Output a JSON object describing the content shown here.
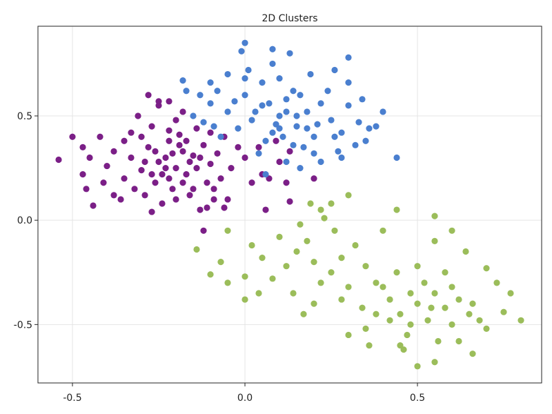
{
  "chart_data": {
    "type": "scatter",
    "title": "2D Clusters",
    "xlabel": "",
    "ylabel": "",
    "xlim": [
      -0.6,
      0.86
    ],
    "ylim": [
      -0.78,
      0.93
    ],
    "x_ticks": [
      -0.5,
      0.0,
      0.5
    ],
    "x_tick_labels": [
      "-0.5",
      "0.0",
      "0.5"
    ],
    "y_ticks": [
      -0.5,
      0.0,
      0.5
    ],
    "y_tick_labels": [
      "-0.5",
      "0.0",
      "0.5"
    ],
    "grid": true,
    "legend": "none",
    "series": [
      {
        "color": "#7b1f87",
        "points": [
          [
            -0.23,
            0.3
          ],
          [
            -0.18,
            0.33
          ],
          [
            -0.25,
            0.28
          ],
          [
            -0.2,
            0.25
          ],
          [
            -0.15,
            0.31
          ],
          [
            -0.28,
            0.35
          ],
          [
            -0.22,
            0.38
          ],
          [
            -0.17,
            0.22
          ],
          [
            -0.3,
            0.24
          ],
          [
            -0.12,
            0.36
          ],
          [
            -0.26,
            0.18
          ],
          [
            -0.19,
            0.41
          ],
          [
            -0.33,
            0.3
          ],
          [
            -0.1,
            0.27
          ],
          [
            -0.21,
            0.15
          ],
          [
            -0.14,
            0.44
          ],
          [
            -0.35,
            0.2
          ],
          [
            -0.08,
            0.32
          ],
          [
            -0.27,
            0.45
          ],
          [
            -0.16,
            0.12
          ],
          [
            -0.38,
            0.33
          ],
          [
            -0.06,
            0.4
          ],
          [
            -0.24,
            0.08
          ],
          [
            -0.11,
            0.18
          ],
          [
            -0.31,
            0.5
          ],
          [
            -0.04,
            0.25
          ],
          [
            -0.4,
            0.26
          ],
          [
            -0.2,
            0.48
          ],
          [
            -0.29,
            0.12
          ],
          [
            -0.13,
            0.05
          ],
          [
            -0.42,
            0.4
          ],
          [
            -0.02,
            0.35
          ],
          [
            -0.36,
            0.1
          ],
          [
            -0.09,
            0.1
          ],
          [
            -0.25,
            0.55
          ],
          [
            -0.18,
            0.52
          ],
          [
            -0.45,
            0.3
          ],
          [
            0.0,
            0.3
          ],
          [
            -0.33,
            0.42
          ],
          [
            -0.07,
            0.2
          ],
          [
            -0.22,
            0.2
          ],
          [
            -0.16,
            0.28
          ],
          [
            -0.26,
            0.33
          ],
          [
            -0.19,
            0.36
          ],
          [
            -0.23,
            0.25
          ],
          [
            -0.13,
            0.3
          ],
          [
            -0.29,
            0.28
          ],
          [
            -0.21,
            0.32
          ],
          [
            -0.17,
            0.38
          ],
          [
            -0.24,
            0.22
          ],
          [
            -0.47,
            0.22
          ],
          [
            -0.5,
            0.4
          ],
          [
            -0.54,
            0.29
          ],
          [
            -0.44,
            0.07
          ],
          [
            -0.47,
            0.35
          ],
          [
            -0.46,
            0.15
          ],
          [
            -0.28,
            0.6
          ],
          [
            -0.25,
            0.57
          ],
          [
            -0.22,
            0.57
          ],
          [
            -0.11,
            0.06
          ],
          [
            -0.05,
            0.1
          ],
          [
            0.02,
            0.18
          ],
          [
            0.05,
            0.22
          ],
          [
            0.1,
            0.28
          ],
          [
            0.13,
            0.33
          ],
          [
            0.04,
            0.35
          ],
          [
            0.09,
            0.38
          ],
          [
            0.07,
            0.2
          ],
          [
            -0.12,
            -0.05
          ],
          [
            -0.09,
            0.15
          ],
          [
            -0.27,
            0.04
          ],
          [
            -0.06,
            0.06
          ],
          [
            0.12,
            0.18
          ],
          [
            0.2,
            0.2
          ],
          [
            0.06,
            0.05
          ],
          [
            0.13,
            0.09
          ],
          [
            -0.38,
            0.12
          ],
          [
            -0.41,
            0.18
          ],
          [
            -0.35,
            0.38
          ],
          [
            -0.32,
            0.15
          ],
          [
            -0.2,
            0.1
          ],
          [
            -0.15,
            0.15
          ],
          [
            -0.3,
            0.4
          ],
          [
            -0.1,
            0.42
          ],
          [
            -0.14,
            0.25
          ],
          [
            -0.27,
            0.22
          ],
          [
            -0.18,
            0.18
          ],
          [
            -0.22,
            0.43
          ]
        ]
      },
      {
        "color": "#4a7fcf",
        "points": [
          [
            0.1,
            0.5
          ],
          [
            0.05,
            0.55
          ],
          [
            0.15,
            0.45
          ],
          [
            0.12,
            0.58
          ],
          [
            0.08,
            0.42
          ],
          [
            0.18,
            0.52
          ],
          [
            0.02,
            0.48
          ],
          [
            0.14,
            0.62
          ],
          [
            0.2,
            0.4
          ],
          [
            0.06,
            0.38
          ],
          [
            0.22,
            0.56
          ],
          [
            0.0,
            0.6
          ],
          [
            0.17,
            0.35
          ],
          [
            -0.02,
            0.44
          ],
          [
            0.25,
            0.48
          ],
          [
            0.1,
            0.68
          ],
          [
            0.28,
            0.42
          ],
          [
            -0.05,
            0.52
          ],
          [
            0.3,
            0.55
          ],
          [
            0.04,
            0.32
          ],
          [
            0.24,
            0.62
          ],
          [
            -0.07,
            0.4
          ],
          [
            0.19,
            0.7
          ],
          [
            0.33,
            0.47
          ],
          [
            -0.1,
            0.56
          ],
          [
            0.12,
            0.28
          ],
          [
            0.35,
            0.38
          ],
          [
            0.08,
            0.75
          ],
          [
            -0.12,
            0.47
          ],
          [
            0.27,
            0.33
          ],
          [
            0.01,
            0.72
          ],
          [
            0.38,
            0.45
          ],
          [
            0.16,
            0.25
          ],
          [
            -0.08,
            0.62
          ],
          [
            0.3,
            0.66
          ],
          [
            0.06,
            0.22
          ],
          [
            0.4,
            0.52
          ],
          [
            -0.15,
            0.5
          ],
          [
            0.22,
            0.28
          ],
          [
            0.13,
            0.8
          ],
          [
            0.0,
            0.85
          ],
          [
            -0.01,
            0.81
          ],
          [
            0.08,
            0.82
          ],
          [
            0.3,
            0.78
          ],
          [
            0.26,
            0.72
          ],
          [
            0.34,
            0.58
          ],
          [
            0.36,
            0.44
          ],
          [
            0.44,
            0.3
          ],
          [
            0.28,
            0.3
          ],
          [
            0.32,
            0.36
          ],
          [
            0.2,
            0.32
          ],
          [
            0.14,
            0.36
          ],
          [
            0.11,
            0.4
          ],
          [
            0.09,
            0.46
          ],
          [
            0.03,
            0.52
          ],
          [
            -0.03,
            0.57
          ],
          [
            -0.09,
            0.45
          ],
          [
            -0.13,
            0.6
          ],
          [
            -0.17,
            0.62
          ],
          [
            -0.18,
            0.67
          ],
          [
            -0.1,
            0.66
          ],
          [
            -0.05,
            0.7
          ],
          [
            0.0,
            0.68
          ],
          [
            0.05,
            0.66
          ],
          [
            0.16,
            0.6
          ],
          [
            0.21,
            0.46
          ],
          [
            0.26,
            0.4
          ],
          [
            0.12,
            0.52
          ],
          [
            0.07,
            0.56
          ],
          [
            0.18,
            0.44
          ],
          [
            0.15,
            0.5
          ],
          [
            0.1,
            0.44
          ]
        ]
      },
      {
        "color": "#9bbd5a",
        "points": [
          [
            0.5,
            -0.4
          ],
          [
            0.45,
            -0.45
          ],
          [
            0.55,
            -0.35
          ],
          [
            0.48,
            -0.5
          ],
          [
            0.52,
            -0.3
          ],
          [
            0.42,
            -0.38
          ],
          [
            0.58,
            -0.42
          ],
          [
            0.47,
            -0.55
          ],
          [
            0.53,
            -0.48
          ],
          [
            0.4,
            -0.32
          ],
          [
            0.6,
            -0.5
          ],
          [
            0.44,
            -0.25
          ],
          [
            0.56,
            -0.58
          ],
          [
            0.38,
            -0.45
          ],
          [
            0.62,
            -0.38
          ],
          [
            0.5,
            -0.22
          ],
          [
            0.35,
            -0.52
          ],
          [
            0.65,
            -0.45
          ],
          [
            0.46,
            -0.62
          ],
          [
            0.58,
            -0.25
          ],
          [
            0.2,
            -0.2
          ],
          [
            0.25,
            -0.25
          ],
          [
            0.15,
            -0.15
          ],
          [
            0.22,
            -0.3
          ],
          [
            0.18,
            -0.1
          ],
          [
            0.28,
            -0.18
          ],
          [
            0.12,
            -0.22
          ],
          [
            0.3,
            -0.32
          ],
          [
            0.1,
            -0.08
          ],
          [
            0.26,
            -0.05
          ],
          [
            0.05,
            -0.18
          ],
          [
            0.32,
            -0.12
          ],
          [
            0.14,
            -0.35
          ],
          [
            0.08,
            -0.28
          ],
          [
            0.35,
            -0.22
          ],
          [
            0.2,
            -0.4
          ],
          [
            0.02,
            -0.12
          ],
          [
            0.38,
            -0.3
          ],
          [
            0.16,
            -0.02
          ],
          [
            0.04,
            -0.35
          ],
          [
            -0.05,
            -0.05
          ],
          [
            -0.07,
            -0.2
          ],
          [
            -0.14,
            -0.14
          ],
          [
            -0.1,
            -0.26
          ],
          [
            0.0,
            -0.27
          ],
          [
            -0.05,
            -0.3
          ],
          [
            0.0,
            -0.38
          ],
          [
            0.17,
            -0.45
          ],
          [
            0.22,
            0.05
          ],
          [
            0.19,
            0.08
          ],
          [
            0.25,
            0.08
          ],
          [
            0.3,
            0.12
          ],
          [
            0.23,
            0.01
          ],
          [
            0.44,
            0.05
          ],
          [
            0.55,
            0.02
          ],
          [
            0.4,
            -0.05
          ],
          [
            0.6,
            -0.05
          ],
          [
            0.55,
            -0.1
          ],
          [
            0.64,
            -0.15
          ],
          [
            0.7,
            -0.23
          ],
          [
            0.73,
            -0.3
          ],
          [
            0.77,
            -0.35
          ],
          [
            0.8,
            -0.48
          ],
          [
            0.75,
            -0.44
          ],
          [
            0.7,
            -0.52
          ],
          [
            0.66,
            -0.64
          ],
          [
            0.62,
            -0.58
          ],
          [
            0.55,
            -0.68
          ],
          [
            0.5,
            -0.7
          ],
          [
            0.45,
            -0.6
          ],
          [
            0.36,
            -0.6
          ],
          [
            0.3,
            -0.55
          ],
          [
            0.34,
            -0.42
          ],
          [
            0.28,
            -0.38
          ],
          [
            0.42,
            -0.48
          ],
          [
            0.48,
            -0.35
          ],
          [
            0.54,
            -0.42
          ],
          [
            0.6,
            -0.32
          ],
          [
            0.66,
            -0.4
          ],
          [
            0.68,
            -0.48
          ]
        ]
      }
    ]
  }
}
